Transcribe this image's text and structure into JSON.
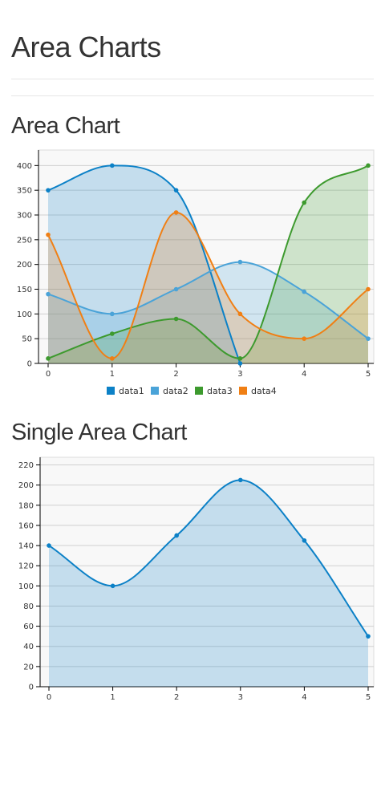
{
  "page": {
    "title": "Area Charts"
  },
  "sections": [
    {
      "title": "Area Chart"
    },
    {
      "title": "Single Area Chart"
    }
  ],
  "colors": {
    "data1": "#1f77b4",
    "data2": "#4aa3d8",
    "data3": "#3d9a2e",
    "data4": "#f07f14"
  },
  "chart_data": [
    {
      "type": "area",
      "title": "",
      "x": [
        0,
        1,
        2,
        3,
        4,
        5
      ],
      "ylim": [
        0,
        420
      ],
      "yticks": [
        0,
        50,
        100,
        150,
        200,
        250,
        300,
        350,
        400
      ],
      "grid": true,
      "legend": "bottom",
      "series": [
        {
          "name": "data1",
          "values": [
            350,
            400,
            350,
            0,
            null,
            null
          ],
          "color": "#0c81c7"
        },
        {
          "name": "data2",
          "values": [
            140,
            100,
            150,
            205,
            145,
            50
          ],
          "color": "#4aa3d8"
        },
        {
          "name": "data3",
          "values": [
            10,
            60,
            90,
            10,
            325,
            400
          ],
          "color": "#3d9a2e"
        },
        {
          "name": "data4",
          "values": [
            260,
            10,
            305,
            100,
            50,
            150
          ],
          "color": "#f07f14"
        }
      ]
    },
    {
      "type": "area",
      "title": "",
      "x": [
        0,
        1,
        2,
        3,
        4,
        5
      ],
      "ylim": [
        0,
        222
      ],
      "yticks": [
        0,
        20,
        40,
        60,
        80,
        100,
        120,
        140,
        160,
        180,
        200,
        220
      ],
      "grid": true,
      "series": [
        {
          "values": [
            140,
            100,
            150,
            205,
            145,
            50
          ],
          "color": "#0c81c7"
        }
      ]
    }
  ]
}
